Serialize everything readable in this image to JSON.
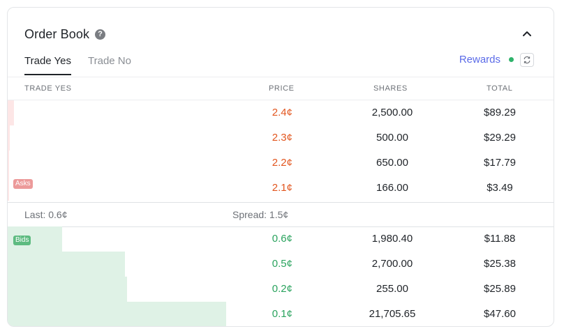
{
  "header": {
    "title": "Order Book",
    "help_glyph": "?"
  },
  "tabs": [
    {
      "label": "Trade Yes",
      "active": true
    },
    {
      "label": "Trade No",
      "active": false
    }
  ],
  "rewards_label": "Rewards",
  "columns": {
    "side": "TRADE YES",
    "price": "PRICE",
    "shares": "SHARES",
    "total": "TOTAL"
  },
  "asks_label": "Asks",
  "bids_label": "Bids",
  "asks": [
    {
      "price": "2.4¢",
      "shares": "2,500.00",
      "total": "$89.29",
      "depth": 0.012
    },
    {
      "price": "2.3¢",
      "shares": "500.00",
      "total": "$29.29",
      "depth": 0.004
    },
    {
      "price": "2.2¢",
      "shares": "650.00",
      "total": "$17.79",
      "depth": 0.003
    },
    {
      "price": "2.1¢",
      "shares": "166.00",
      "total": "$3.49",
      "depth": 0.002
    }
  ],
  "summary": {
    "last": "Last: 0.6¢",
    "spread": "Spread: 1.5¢"
  },
  "bids": [
    {
      "price": "0.6¢",
      "shares": "1,980.40",
      "total": "$11.88",
      "depth": 0.1
    },
    {
      "price": "0.5¢",
      "shares": "2,700.00",
      "total": "$25.38",
      "depth": 0.215
    },
    {
      "price": "0.2¢",
      "shares": "255.00",
      "total": "$25.89",
      "depth": 0.219
    },
    {
      "price": "0.1¢",
      "shares": "21,705.65",
      "total": "$47.60",
      "depth": 0.4
    }
  ],
  "colors": {
    "ask_price": "#e2561f",
    "bid_price": "#2aa35e",
    "ask_depth": "#fde6e6",
    "bid_depth": "#dff2e6",
    "rewards": "#5b6be8",
    "live_dot": "#2fb36b"
  },
  "icons": {
    "help": "question-circle-icon",
    "collapse": "chevron-up-icon",
    "refresh": "refresh-icon"
  }
}
